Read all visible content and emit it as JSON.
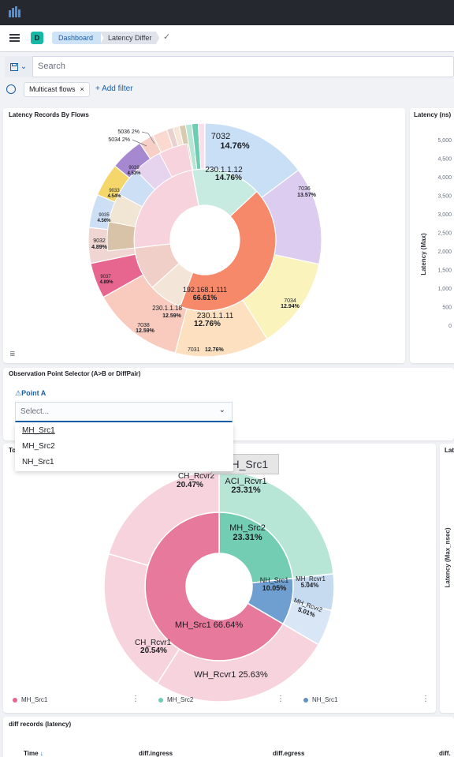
{
  "app": {
    "breadcrumbs": [
      "Dashboard",
      "Latency Differ"
    ],
    "avatar_letter": "D",
    "logo_icon": "kibana-bars-icon"
  },
  "query": {
    "placeholder": "Search",
    "filters": [
      "Multicast flows"
    ],
    "add_filter_label": "+ Add filter"
  },
  "panels": {
    "flows": {
      "title": "Latency Records By Flows"
    },
    "latency": {
      "title": "Latency (ns)",
      "ylabel": "Latency (Max)",
      "ticks": [
        "5,000",
        "4,500",
        "4,000",
        "3,500",
        "3,000",
        "2,500",
        "2,000",
        "1,500",
        "1,000",
        "500",
        "0"
      ]
    },
    "observation": {
      "title": "Observation Point Selector (A>B or DiffPair)",
      "point_label": "Point A",
      "select_placeholder": "Select...",
      "options": [
        "MH_Src1",
        "MH_Src2",
        "NH_Src1"
      ]
    },
    "topology": {
      "title_fragment": "To",
      "tooltip": "MH_Src1",
      "legend": [
        {
          "label": "MH_Src1",
          "color": "#e7668f"
        },
        {
          "label": "MH_Src2",
          "color": "#6dccb1"
        },
        {
          "label": "NH_Src1",
          "color": "#6092c0"
        }
      ]
    },
    "right_partial": {
      "title_fragment": "Lat",
      "ylabel_fragment": "Latency (Max_nsec)"
    },
    "diff": {
      "title": "diff records (latency)",
      "columns": [
        "Time",
        "diff.ingress",
        "diff.egress",
        "diff."
      ]
    }
  },
  "chart_data": [
    {
      "type": "pie",
      "title": "Latency Records By Flows",
      "inner_ring": [
        {
          "label": "192.168.1.111",
          "value": 66.61,
          "color": "#f5896a"
        },
        {
          "label": "230.1.1.11",
          "value": 12.76,
          "color": "#f3e6d8"
        },
        {
          "label": "230.1.1.18",
          "value": 12.59,
          "color": "#efcfc7"
        },
        {
          "label": "230.1.1.12",
          "value": 14.76,
          "color": "#c7ebe0"
        }
      ],
      "outer_ring": [
        {
          "label": "7032",
          "value": 14.76,
          "color": "#c9dff5"
        },
        {
          "label": "7036",
          "value": 13.57,
          "color": "#dccdf0"
        },
        {
          "label": "7034",
          "value": 12.94,
          "color": "#fbf3bc"
        },
        {
          "label": "7031",
          "value": 12.76,
          "color": "#fde0bf"
        },
        {
          "label": "7038",
          "value": 12.59,
          "color": "#f9cabe"
        },
        {
          "label": "9037",
          "value": 4.89,
          "color": "#e7668f"
        },
        {
          "label": "9032",
          "value": 4.89,
          "color": "#efd6d2"
        },
        {
          "label": "9035",
          "value": 4.56,
          "color": "#cddff5"
        },
        {
          "label": "9033",
          "value": 4.54,
          "color": "#f4d66a"
        },
        {
          "label": "9039",
          "value": 4.53,
          "color": "#a688d0"
        },
        {
          "label": "5034",
          "value": 2,
          "color": "#f6cfc6"
        },
        {
          "label": "5036",
          "value": 2,
          "color": "#f9d9d0"
        }
      ]
    },
    {
      "type": "pie",
      "title": "",
      "inner_ring": [
        {
          "label": "MH_Src1",
          "value": 66.64,
          "color": "#e7799c"
        },
        {
          "label": "MH_Src2",
          "value": 23.31,
          "color": "#72cdb3"
        },
        {
          "label": "NH_Src1",
          "value": 10.05,
          "color": "#6f9fd0"
        }
      ],
      "outer_ring": [
        {
          "label": "ACI_Rcvr1",
          "value": 23.31,
          "color": "#b8e6d6"
        },
        {
          "label": "MH_Rcvr1",
          "value": 5.04,
          "color": "#c7dbf0"
        },
        {
          "label": "MH_Rcvr2",
          "value": 5.01,
          "color": "#d8e6f5"
        },
        {
          "label": "WH_Rcvr1",
          "value": 25.63,
          "color": "#f7d3dd"
        },
        {
          "label": "CH_Rcvr1",
          "value": 20.54,
          "color": "#f7d3dd"
        },
        {
          "label": "CH_Rcvr2",
          "value": 20.47,
          "color": "#f7d3dd"
        }
      ]
    }
  ]
}
